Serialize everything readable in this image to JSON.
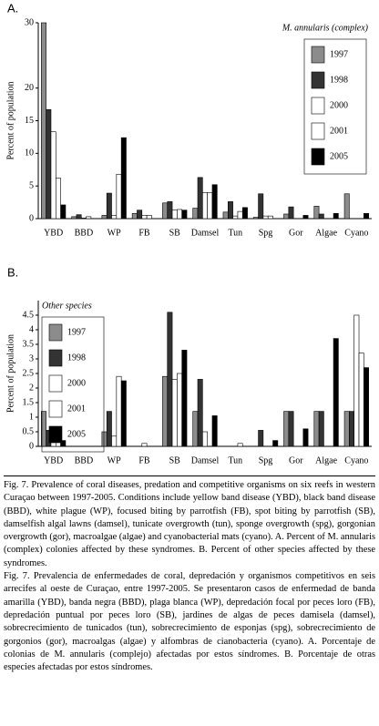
{
  "chart_data": [
    {
      "type": "bar",
      "panel": "A.",
      "y_label": "Percent of population",
      "legend_title": "M. annularis (complex)",
      "legend": "upper right",
      "categories": [
        "YBD",
        "BBD",
        "WP",
        "FB",
        "SB",
        "Damsel",
        "Tun",
        "Spg",
        "Gor",
        "Algae",
        "Cyano"
      ],
      "series": [
        {
          "name": "1997",
          "color": "#8c8c8c",
          "values": [
            30,
            0.3,
            0.5,
            0.8,
            2.4,
            1.6,
            1.0,
            0.2,
            0.7,
            1.9,
            3.8
          ]
        },
        {
          "name": "1998",
          "color": "#333333",
          "values": [
            16.7,
            0.6,
            3.9,
            1.3,
            2.6,
            6.3,
            2.6,
            3.8,
            1.8,
            0.7,
            0
          ]
        },
        {
          "name": "2000",
          "color": "#ffffff",
          "values": [
            13.3,
            0.1,
            0.5,
            0.5,
            1.3,
            4,
            0.4,
            0.4,
            0,
            0,
            0
          ]
        },
        {
          "name": "2001",
          "color": "#ffffff",
          "values": [
            6.2,
            0.3,
            6.8,
            0.5,
            1.4,
            4,
            1.1,
            0.4,
            0,
            0,
            0
          ]
        },
        {
          "name": "2005",
          "color": "#000000",
          "values": [
            2.1,
            0,
            12.4,
            0,
            1.3,
            5.2,
            1.7,
            0,
            0.5,
            0.8,
            0.8
          ]
        }
      ],
      "ylim": [
        0,
        30
      ],
      "yticks": [
        0,
        5,
        10,
        15,
        20,
        30
      ]
    },
    {
      "type": "bar",
      "panel": "B.",
      "y_label": "Percent of population",
      "legend_title": "Other species",
      "legend": "upper left",
      "categories": [
        "YBD",
        "BBD",
        "WP",
        "FB",
        "SB",
        "Damsel",
        "Tun",
        "Spg",
        "Gor",
        "Algae",
        "Cyano"
      ],
      "series": [
        {
          "name": "1997",
          "color": "#8c8c8c",
          "values": [
            1.2,
            0,
            0.5,
            0,
            2.4,
            1.2,
            0,
            0,
            1.2,
            1.2,
            1.2
          ]
        },
        {
          "name": "1998",
          "color": "#333333",
          "values": [
            0.55,
            0,
            1.2,
            0,
            4.6,
            2.3,
            0,
            0.55,
            1.2,
            1.2,
            1.2
          ]
        },
        {
          "name": "2000",
          "color": "#ffffff",
          "values": [
            0.5,
            0,
            0.35,
            0.1,
            2.3,
            0.5,
            0,
            0,
            0,
            0,
            4.5
          ]
        },
        {
          "name": "2001",
          "color": "#ffffff",
          "values": [
            0.35,
            0,
            2.4,
            0,
            2.5,
            0,
            0.1,
            0,
            0,
            0,
            3.2
          ]
        },
        {
          "name": "2005",
          "color": "#000000",
          "values": [
            0.2,
            0,
            2.25,
            0,
            3.3,
            1.05,
            0,
            0.2,
            0.6,
            3.7,
            2.7
          ]
        }
      ],
      "ylim": [
        0,
        5
      ],
      "yticks": [
        0,
        0.5,
        1,
        1.5,
        2,
        2.5,
        3,
        3.5,
        4,
        4.5
      ]
    }
  ],
  "caption": {
    "english": "Fig. 7. Prevalence of coral diseases, predation and competitive organisms on six reefs in western Curaçao between 1997-2005. Conditions include yellow band disease (YBD), black band disease (BBD), white plague (WP), focused biting by parrotfish (FB), spot biting by parrotfish (SB), damselfish algal lawns (damsel), tunicate overgrowth (tun), sponge overgrowth (spg), gorgonian overgrowth (gor), macroalgae (algae) and cyanobacterial mats (cyano). A. Percent of M. annularis (complex) colonies affected by these syndromes. B. Percent of other species affected by these syndromes.",
    "spanish": "Fig. 7. Prevalencia de enfermedades de coral, depredación y organismos competitivos en seis arrecifes al oeste de Curaçao, entre 1997-2005. Se presentaron casos de enfermedad de banda amarilla (YBD), banda negra (BBD), plaga blanca (WP), depredación focal por peces loro (FB), depredación puntual por peces loro (SB), jardines de algas de peces damisela (damsel), sobrecrecimiento de tunicados (tun), sobrecrecimiento de esponjas (spg), sobrecrecimiento de gorgonios (gor), macroalgas (algae) y alfombras de cianobacteria (cyano). A. Porcentaje de colonias de M. annularis (complejo) afectadas por estos síndromes. B. Porcentaje de otras especies afectadas por estos síndromes."
  }
}
